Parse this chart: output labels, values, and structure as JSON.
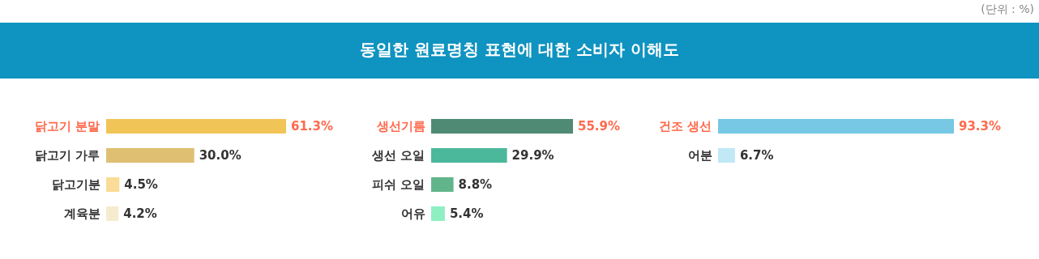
{
  "chart_data": [
    {
      "type": "other",
      "title": "동일한 원료명칭 표현에 대한 소비자 이해도",
      "annotations": [
        "(단위 : %)"
      ]
    },
    {
      "type": "bar",
      "orientation": "horizontal",
      "categories": [
        "닭고기 분말",
        "닭고기 가루",
        "닭고기분",
        "계육분"
      ],
      "values": [
        61.3,
        30.0,
        4.5,
        4.2
      ],
      "value_labels": [
        "61.3%",
        "30.0%",
        "4.5%",
        "4.2%"
      ],
      "colors": [
        "#f0c457",
        "#dfbf72",
        "#fbdc96",
        "#f6ebcf"
      ]
    },
    {
      "type": "bar",
      "orientation": "horizontal",
      "categories": [
        "생선기름",
        "생선 오일",
        "피쉬 오일",
        "어유"
      ],
      "values": [
        55.9,
        29.9,
        8.8,
        5.4
      ],
      "value_labels": [
        "55.9%",
        "29.9%",
        "8.8%",
        "5.4%"
      ],
      "colors": [
        "#4f8a75",
        "#4bb89b",
        "#62b58a",
        "#8ef0c2"
      ]
    },
    {
      "type": "bar",
      "orientation": "horizontal",
      "categories": [
        "건조 생선",
        "어분"
      ],
      "values": [
        93.3,
        6.7
      ],
      "value_labels": [
        "93.3%",
        "6.7%"
      ],
      "colors": [
        "#76c8e4",
        "#c0e8f5"
      ]
    }
  ]
}
